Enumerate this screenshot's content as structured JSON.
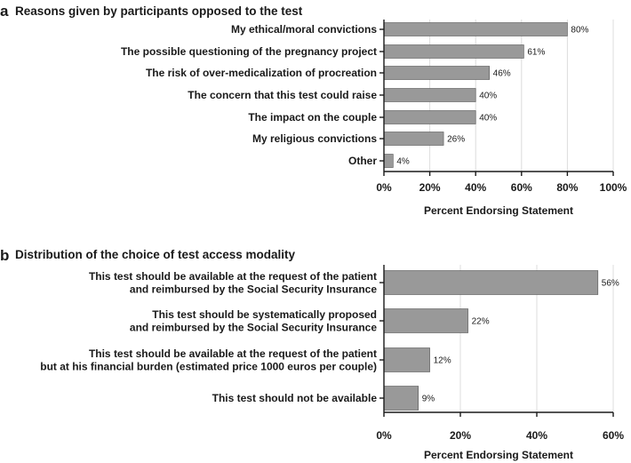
{
  "chart_data": [
    {
      "type": "bar",
      "orientation": "horizontal",
      "panel": "a",
      "title": "Reasons given by participants opposed to the test",
      "categories": [
        "My ethical/moral convictions",
        "The possible questioning of the pregnancy project",
        "The risk of over-medicalization of procreation",
        "The concern that this test could raise",
        "The impact on the couple",
        "My religious convictions",
        "Other"
      ],
      "values": [
        80,
        61,
        46,
        40,
        40,
        26,
        4
      ],
      "value_labels": [
        "80%",
        "61%",
        "46%",
        "40%",
        "40%",
        "26%",
        "4%"
      ],
      "xlabel": "Percent Endorsing Statement",
      "xlim": [
        0,
        100
      ],
      "xticks": [
        0,
        20,
        40,
        60,
        80,
        100
      ],
      "xtick_labels": [
        "0%",
        "20%",
        "40%",
        "60%",
        "80%",
        "100%"
      ],
      "grid": "vertical",
      "bar_color": "#999999"
    },
    {
      "type": "bar",
      "orientation": "horizontal",
      "panel": "b",
      "title": "Distribution of the choice of test access modality",
      "categories": [
        [
          "This test should be available at the request of the patient",
          "and reimbursed by the Social Security Insurance"
        ],
        [
          "This test should be systematically proposed",
          "and reimbursed by the Social Security Insurance"
        ],
        [
          "This test should be available at the request of the patient",
          "but at his financial burden (estimated price 1000 euros per couple)"
        ],
        [
          "This test should not be available"
        ]
      ],
      "values": [
        56,
        22,
        12,
        9
      ],
      "value_labels": [
        "56%",
        "22%",
        "12%",
        "9%"
      ],
      "xlabel": "Percent Endorsing Statement",
      "xlim": [
        0,
        60
      ],
      "xticks": [
        0,
        20,
        40,
        60
      ],
      "xtick_labels": [
        "0%",
        "20%",
        "40%",
        "60%"
      ],
      "grid": "vertical",
      "bar_color": "#999999"
    }
  ]
}
